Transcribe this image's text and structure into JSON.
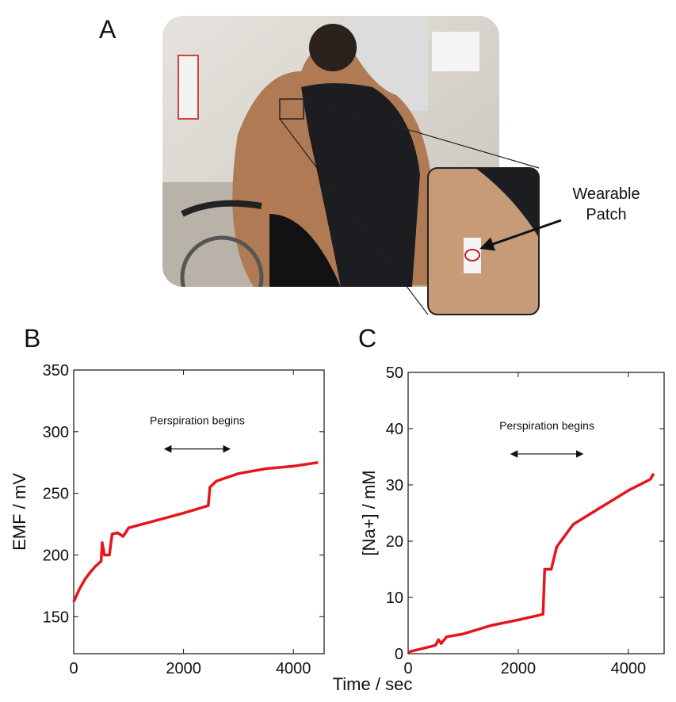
{
  "panels": {
    "a": "A",
    "b": "B",
    "c": "C"
  },
  "photo_callout": "Wearable Patch",
  "shared_xlabel": "Time / sec",
  "chart_data": [
    {
      "type": "line",
      "ylabel": "EMF / mV",
      "color": "#e8141c",
      "x": [
        0,
        100,
        200,
        300,
        400,
        500,
        520,
        560,
        650,
        700,
        800,
        900,
        1000,
        1500,
        2000,
        2450,
        2480,
        2600,
        3000,
        3500,
        4000,
        4450
      ],
      "values": [
        162,
        172,
        180,
        186,
        191,
        195,
        210,
        200,
        200,
        217,
        218,
        215,
        222,
        228,
        234,
        240,
        255,
        260,
        266,
        270,
        272,
        275
      ],
      "xlim": [
        0,
        4560
      ],
      "ylim": [
        120,
        350
      ],
      "xticks": [
        0,
        2000,
        4000
      ],
      "yticks": [
        150,
        200,
        250,
        300,
        350
      ],
      "annotation": {
        "text": "Perspiration begins",
        "x": [
          1660,
          2840
        ],
        "y": 286
      }
    },
    {
      "type": "line",
      "ylabel": "[Na+] / mM",
      "color": "#e8141c",
      "x": [
        0,
        500,
        550,
        600,
        700,
        1000,
        1500,
        2000,
        2450,
        2480,
        2600,
        2700,
        3000,
        3500,
        4000,
        4200,
        4400,
        4460
      ],
      "values": [
        0.3,
        1.5,
        2.5,
        1.8,
        3,
        3.5,
        5,
        6,
        7,
        15,
        15,
        19,
        23,
        26,
        29,
        30,
        31,
        32
      ],
      "xlim": [
        0,
        4650
      ],
      "ylim": [
        0,
        50
      ],
      "xticks": [
        0,
        2000,
        4000
      ],
      "yticks": [
        0,
        10,
        20,
        30,
        40,
        50
      ],
      "annotation": {
        "text": "Perspiration begins",
        "x": [
          1870,
          3170
        ],
        "y": 35.5
      }
    }
  ]
}
